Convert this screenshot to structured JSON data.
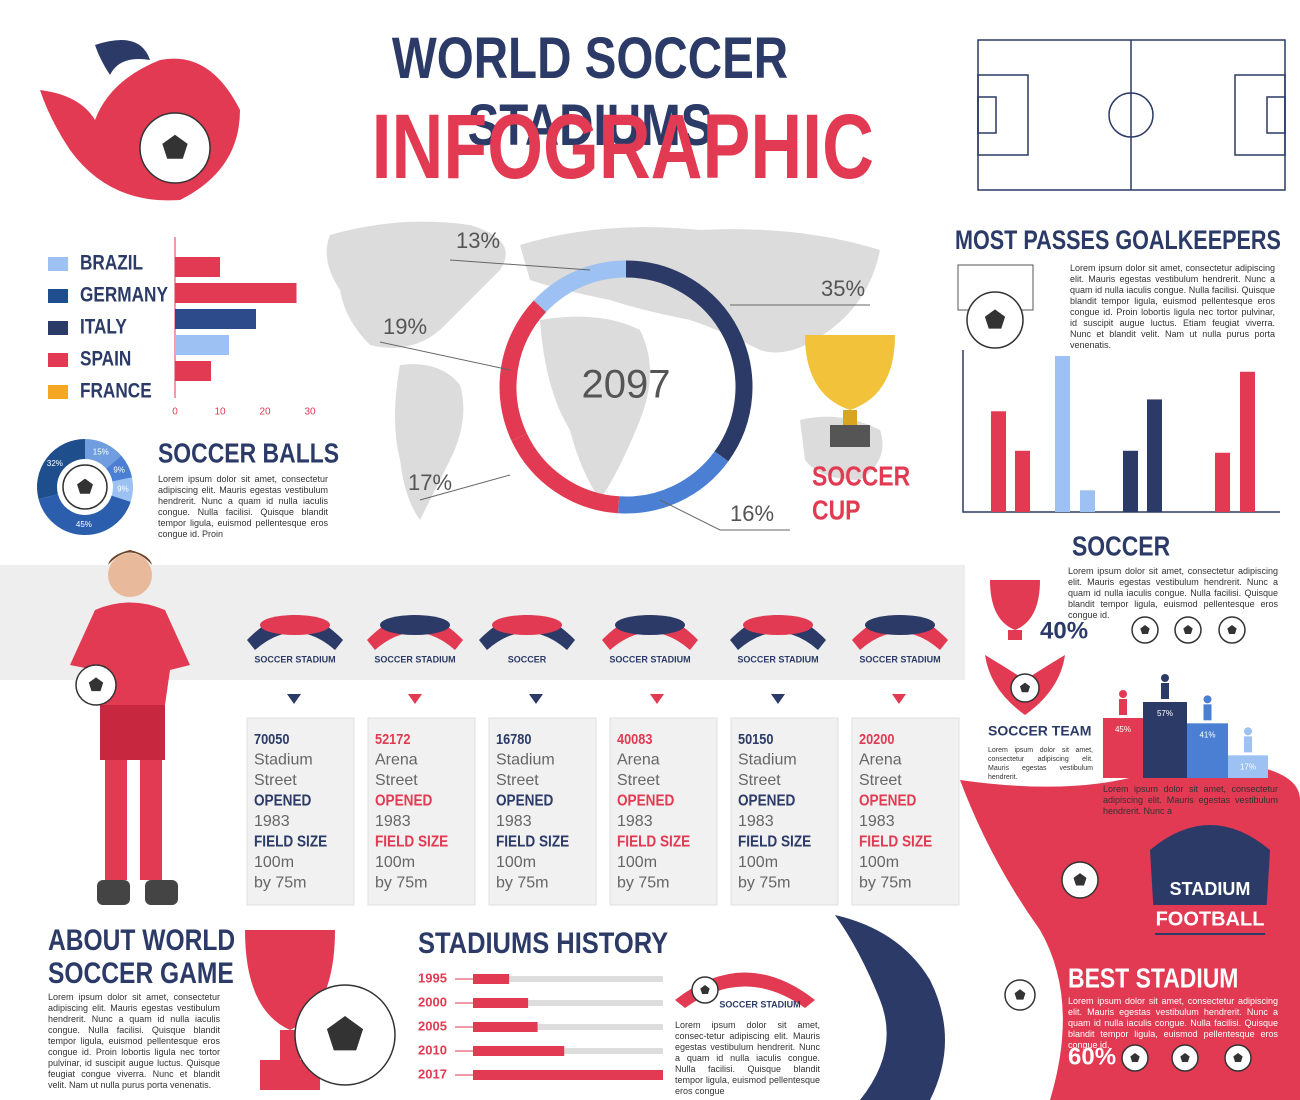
{
  "header": {
    "title": "WORLD SOCCER STADIUMS",
    "subtitle": "INFOGRAPHIC"
  },
  "chart_data": [
    {
      "type": "hbar",
      "categories": [
        "BRAZIL",
        "GERMANY",
        "ITALY",
        "SPAIN",
        "FRANCE"
      ],
      "legend_colors": [
        "#9cc1f2",
        "#1f4e8c",
        "#2b3a67",
        "#e23a52",
        "#f5a623"
      ],
      "values": [
        10,
        27,
        18,
        12,
        8
      ],
      "colors": [
        "#e23a52",
        "#e23a52",
        "#2d4a8a",
        "#9cc1f2",
        "#e23a52"
      ],
      "xlim": [
        0,
        30
      ],
      "xticks": [
        0,
        10,
        20,
        30
      ]
    },
    {
      "type": "donut",
      "center_label": "2097",
      "values": [
        35,
        16,
        17,
        19,
        13
      ],
      "value_labels": [
        "35%",
        "16%",
        "17%",
        "19%",
        "13%"
      ],
      "colors": [
        "#2b3a67",
        "#4a7fd4",
        "#e23a52",
        "#e23a52",
        "#9cc1f2"
      ]
    },
    {
      "type": "small-donut",
      "title": "SOCCER BALLS",
      "text": "Lorem ipsum dolor sit amet, consectetur adipiscing elit. Mauris egestas vestibulum hendrerit. Nunc a quam id nulla iaculis congue. Nulla facilisi. Quisque blandit tempor ligula, euismod pellentesque eros congue id. Proin",
      "values": [
        15,
        9,
        9,
        45,
        32
      ],
      "value_labels": [
        "15%",
        "9%",
        "9%",
        "45%",
        "32%"
      ],
      "colors": [
        "#6f9de0",
        "#4a7fd4",
        "#9cc1f2",
        "#2b5fad",
        "#1f4e8c"
      ]
    },
    {
      "type": "column",
      "title": "MOST PASSES GOALKEEPERS",
      "text": "Lorem ipsum dolor sit amet, consectetur adipiscing elit. Mauris egestas vestibulum hendrerit. Nunc a quam id nulla iaculis congue. Nulla facilisi. Quisque blandit tempor ligula, euismod pellentesque eros congue id. Proin lobortis ligula nec tortor pulvinar, id suscipit augue luctus. Etiam feugiat viverra. Nunc et blandit velit. Nam ut nulla purus porta venenatis.",
      "categories": [
        null,
        null,
        null,
        null,
        null,
        null,
        null,
        null
      ],
      "values": [
        102,
        62,
        158,
        22,
        62,
        114,
        60,
        142
      ],
      "colors": [
        "#e23a52",
        "#e23a52",
        "#9cc1f2",
        "#9cc1f2",
        "#2b3a67",
        "#2b3a67",
        "#e23a52",
        "#e23a52"
      ],
      "ylim": [
        0,
        160
      ]
    },
    {
      "type": "podium",
      "values": [
        45,
        57,
        41,
        17
      ],
      "value_labels": [
        "45%",
        "57%",
        "41%",
        "17%"
      ],
      "colors": [
        "#e23a52",
        "#2b3a67",
        "#4a7fd4",
        "#9cc1f2"
      ],
      "ylim": [
        0,
        60
      ]
    },
    {
      "type": "history",
      "title": "STADIUMS HISTORY",
      "categories": [
        "1995",
        "2000",
        "2005",
        "2010",
        "2017"
      ],
      "values": [
        19,
        29,
        34,
        48,
        100
      ],
      "xlim": [
        0,
        100
      ],
      "text": "Lorem ipsum dolor sit amet, consec-tetur adipiscing elit. Mauris egestas vestibulum hendrerit. Nunc a quam id nulla iaculis congue. Nulla facilisi. Quisque blandit tempor ligula, euismod pellentesque eros congue"
    }
  ],
  "cup": {
    "line1": "SOCCER",
    "line2": "CUP"
  },
  "logos": [
    "SOCCER STADIUM",
    "SOCCER STADIUM",
    "SOCCER",
    "SOCCER STADIUM",
    "SOCCER STADIUM",
    "SOCCER STADIUM"
  ],
  "stadiums": [
    {
      "capacity": 70050,
      "kind": "Stadium",
      "street": "Street",
      "opened_label": "OPENED",
      "opened": "1983",
      "size_label": "FIELD SIZE",
      "size": "100m",
      "size2": "by 75m"
    },
    {
      "capacity": 52172,
      "kind": "Arena",
      "street": "Street",
      "opened_label": "OPENED",
      "opened": "1983",
      "size_label": "FIELD SIZE",
      "size": "100m",
      "size2": "by 75m"
    },
    {
      "capacity": 16780,
      "kind": "Stadium",
      "street": "Street",
      "opened_label": "OPENED",
      "opened": "1983",
      "size_label": "FIELD SIZE",
      "size": "100m",
      "size2": "by 75m"
    },
    {
      "capacity": 40083,
      "kind": "Arena",
      "street": "Street",
      "opened_label": "OPENED",
      "opened": "1983",
      "size_label": "FIELD SIZE",
      "size": "100m",
      "size2": "by 75m"
    },
    {
      "capacity": 50150,
      "kind": "Stadium",
      "street": "Street",
      "opened_label": "OPENED",
      "opened": "1983",
      "size_label": "FIELD SIZE",
      "size": "100m",
      "size2": "by 75m"
    },
    {
      "capacity": 20200,
      "kind": "Arena",
      "street": "Street",
      "opened_label": "OPENED",
      "opened": "1983",
      "size_label": "FIELD SIZE",
      "size": "100m",
      "size2": "by 75m"
    }
  ],
  "soccer": {
    "title": "SOCCER",
    "text": "Lorem ipsum dolor sit amet, consectetur adipiscing elit. Mauris egestas vestibulum hendrerit. Nunc a quam id nulla iaculis congue. Nulla facilisi. Quisque blandit tempor ligula, euismod pellentesque eros congue id.",
    "percent": "40%"
  },
  "team": {
    "title": "SOCCER TEAM",
    "text": "Lorem ipsum dolor sit amet, consectetur adipiscing elit. Mauris egestas vestibulum hendrerit.",
    "note": "Lorem ipsum dolor sit amet, consectetur adipiscing elit. Mauris egestas vestibulum hendrerit. Nunc a"
  },
  "badge": {
    "line1": "STADIUM",
    "line2": "FOOTBALL"
  },
  "history_logo": "SOCCER STADIUM",
  "best": {
    "title": "BEST STADIUM",
    "text": "Lorem ipsum dolor sit amet, consectetur adipiscing elit. Mauris egestas vestibulum hendrerit. Nunc a quam id nulla iaculis congue. Nulla facilisi. Quisque blandit tempor ligula, euismod pellentesque eros congue id.",
    "percent": "60%"
  },
  "about": {
    "title1": "ABOUT WORLD",
    "title2": "SOCCER GAME",
    "text": "Lorem ipsum dolor sit amet, consectetur adipiscing elit. Mauris egestas vestibulum hendrerit. Nunc a quam id nulla iaculis congue. Nulla facilisi. Quisque blandit tempor ligula, euismod pellentesque eros congue id. Proin lobortis ligula nec tortor pulvinar, id suscipit augue luctus. Quisque feugiat congue viverra. Nunc et blandit velit. Nam ut nulla purus porta venenatis."
  }
}
